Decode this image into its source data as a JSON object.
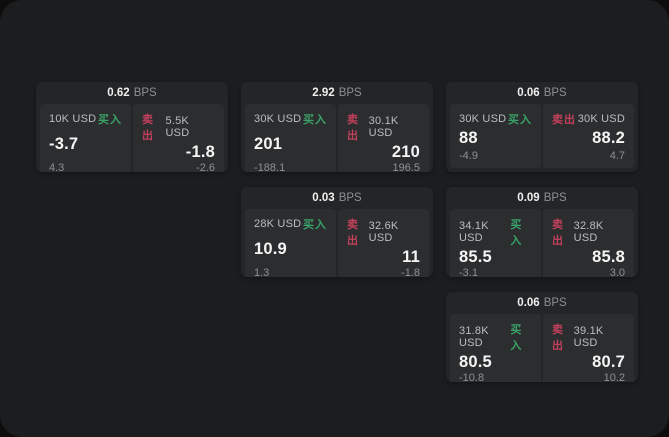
{
  "labels": {
    "bps_unit": "BPS",
    "buy": "买入",
    "sell": "卖出"
  },
  "colors": {
    "buy": "#3aa368",
    "sell": "#c2405c"
  },
  "chart_data": {
    "type": "table",
    "title": "",
    "columns": [
      "bps",
      "buy_notional",
      "buy_price",
      "buy_delta",
      "sell_notional",
      "sell_price",
      "sell_delta"
    ],
    "rows": [
      [
        "0.62",
        "10K USD",
        -3.7,
        4.3,
        "5.5K USD",
        -1.8,
        -2.6
      ],
      [
        "2.92",
        "30K USD",
        201,
        -188.1,
        "30.1K USD",
        210,
        196.5
      ],
      [
        "0.06",
        "30K USD",
        88,
        -4.9,
        "30K USD",
        88.2,
        4.7
      ],
      [
        "0.03",
        "28K USD",
        10.9,
        1.3,
        "32.6K USD",
        11,
        -1.8
      ],
      [
        "0.09",
        "34.1K USD",
        85.5,
        -3.1,
        "32.8K USD",
        85.8,
        3.0
      ],
      [
        "0.06",
        "31.8K USD",
        80.5,
        -10.8,
        "39.1K USD",
        80.7,
        10.2
      ]
    ]
  },
  "cards": [
    {
      "col": 1,
      "row": 1,
      "bps": "0.62",
      "buy": {
        "notional": "10K USD",
        "price": "-3.7",
        "delta": "4.3"
      },
      "sell": {
        "notional": "5.5K USD",
        "price": "-1.8",
        "delta": "-2.6"
      }
    },
    {
      "col": 2,
      "row": 1,
      "bps": "2.92",
      "buy": {
        "notional": "30K USD",
        "price": "201",
        "delta": "-188.1"
      },
      "sell": {
        "notional": "30.1K USD",
        "price": "210",
        "delta": "196.5"
      }
    },
    {
      "col": 3,
      "row": 1,
      "bps": "0.06",
      "buy": {
        "notional": "30K USD",
        "price": "88",
        "delta": "-4.9"
      },
      "sell": {
        "notional": "30K USD",
        "price": "88.2",
        "delta": "4.7"
      }
    },
    {
      "col": 2,
      "row": 2,
      "bps": "0.03",
      "buy": {
        "notional": "28K USD",
        "price": "10.9",
        "delta": "1.3"
      },
      "sell": {
        "notional": "32.6K USD",
        "price": "11",
        "delta": "-1.8"
      }
    },
    {
      "col": 3,
      "row": 2,
      "bps": "0.09",
      "buy": {
        "notional": "34.1K USD",
        "price": "85.5",
        "delta": "-3.1"
      },
      "sell": {
        "notional": "32.8K USD",
        "price": "85.8",
        "delta": "3.0"
      }
    },
    {
      "col": 3,
      "row": 3,
      "bps": "0.06",
      "buy": {
        "notional": "31.8K USD",
        "price": "80.5",
        "delta": "-10.8"
      },
      "sell": {
        "notional": "39.1K USD",
        "price": "80.7",
        "delta": "10.2"
      }
    }
  ]
}
